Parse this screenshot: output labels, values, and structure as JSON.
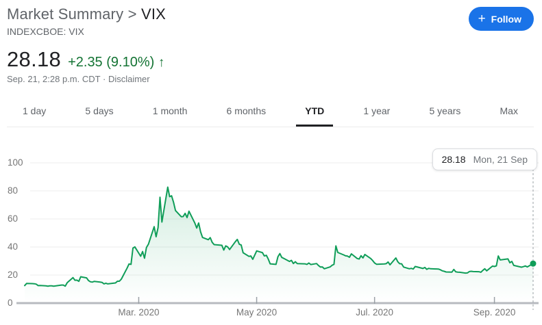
{
  "header": {
    "breadcrumb": "Market Summary > ",
    "symbol": "VIX",
    "subtitle": "INDEXCBOE: VIX",
    "follow_plus": "+",
    "follow_label": "Follow",
    "accent_color": "#1a73e8"
  },
  "quote": {
    "price": "28.18",
    "change": "+2.35 (9.10%)",
    "arrow": "↑",
    "change_color": "#137333",
    "timestamp": "Sep. 21, 2:28 p.m. CDT",
    "separator": "·",
    "disclaimer": "Disclaimer"
  },
  "tabs": [
    {
      "label": "1 day",
      "active": false
    },
    {
      "label": "5 days",
      "active": false
    },
    {
      "label": "1 month",
      "active": false
    },
    {
      "label": "6 months",
      "active": false
    },
    {
      "label": "YTD",
      "active": true
    },
    {
      "label": "1 year",
      "active": false
    },
    {
      "label": "5 years",
      "active": false
    },
    {
      "label": "Max",
      "active": false
    }
  ],
  "tooltip": {
    "value": "28.18",
    "date": "Mon, 21 Sep"
  },
  "chart_data": {
    "type": "line",
    "title": "INDEXCBOE: VIX — YTD",
    "line_color": "#0f9d58",
    "fill_color_rgb": "15,157,88",
    "ylim": [
      0,
      100
    ],
    "yticks": [
      0,
      20,
      40,
      60,
      80,
      100
    ],
    "x_unit": "day_of_year_2020",
    "xticks": [
      {
        "day": 61,
        "label": "Mar. 2020"
      },
      {
        "day": 122,
        "label": "May 2020"
      },
      {
        "day": 183,
        "label": "Jul. 2020"
      },
      {
        "day": 245,
        "label": "Sep. 2020"
      }
    ],
    "grid": true,
    "last_point": {
      "day": 265,
      "value": 28.18,
      "label": "Mon, 21 Sep"
    },
    "points": [
      [
        2,
        12.5
      ],
      [
        3,
        14.0
      ],
      [
        6,
        13.9
      ],
      [
        7,
        13.8
      ],
      [
        8,
        13.5
      ],
      [
        9,
        12.5
      ],
      [
        10,
        12.6
      ],
      [
        13,
        12.3
      ],
      [
        14,
        12.1
      ],
      [
        15,
        12.3
      ],
      [
        16,
        12.3
      ],
      [
        17,
        12.1
      ],
      [
        21,
        12.9
      ],
      [
        22,
        12.9
      ],
      [
        23,
        12.1
      ],
      [
        24,
        14.6
      ],
      [
        27,
        18.2
      ],
      [
        28,
        16.3
      ],
      [
        29,
        16.4
      ],
      [
        30,
        15.5
      ],
      [
        31,
        18.8
      ],
      [
        34,
        18.0
      ],
      [
        35,
        16.1
      ],
      [
        36,
        15.2
      ],
      [
        37,
        15.0
      ],
      [
        38,
        15.5
      ],
      [
        41,
        15.0
      ],
      [
        42,
        14.8
      ],
      [
        43,
        13.7
      ],
      [
        44,
        14.2
      ],
      [
        45,
        13.7
      ],
      [
        49,
        14.4
      ],
      [
        50,
        15.6
      ],
      [
        51,
        15.6
      ],
      [
        52,
        17.1
      ],
      [
        55,
        25.0
      ],
      [
        56,
        27.9
      ],
      [
        57,
        27.6
      ],
      [
        58,
        39.2
      ],
      [
        59,
        40.1
      ],
      [
        62,
        33.4
      ],
      [
        63,
        36.8
      ],
      [
        64,
        32.0
      ],
      [
        65,
        39.6
      ],
      [
        66,
        42.0
      ],
      [
        69,
        54.5
      ],
      [
        70,
        47.3
      ],
      [
        71,
        53.9
      ],
      [
        72,
        75.5
      ],
      [
        73,
        57.8
      ],
      [
        76,
        82.7
      ],
      [
        77,
        75.9
      ],
      [
        78,
        76.5
      ],
      [
        79,
        72.0
      ],
      [
        80,
        66.0
      ],
      [
        83,
        61.6
      ],
      [
        84,
        61.7
      ],
      [
        85,
        64.0
      ],
      [
        86,
        61.0
      ],
      [
        87,
        65.5
      ],
      [
        90,
        57.1
      ],
      [
        91,
        53.5
      ],
      [
        92,
        57.1
      ],
      [
        93,
        50.9
      ],
      [
        94,
        46.8
      ],
      [
        97,
        45.2
      ],
      [
        98,
        46.7
      ],
      [
        99,
        43.3
      ],
      [
        100,
        41.7
      ],
      [
        104,
        41.2
      ],
      [
        105,
        37.8
      ],
      [
        106,
        40.8
      ],
      [
        107,
        40.1
      ],
      [
        108,
        38.2
      ],
      [
        111,
        43.8
      ],
      [
        112,
        45.4
      ],
      [
        113,
        42.0
      ],
      [
        114,
        41.4
      ],
      [
        115,
        35.9
      ],
      [
        118,
        33.3
      ],
      [
        119,
        33.6
      ],
      [
        120,
        31.2
      ],
      [
        121,
        34.2
      ],
      [
        122,
        37.2
      ],
      [
        125,
        36.0
      ],
      [
        126,
        33.6
      ],
      [
        127,
        34.1
      ],
      [
        128,
        31.4
      ],
      [
        129,
        28.0
      ],
      [
        132,
        27.6
      ],
      [
        133,
        33.0
      ],
      [
        134,
        35.3
      ],
      [
        135,
        32.6
      ],
      [
        136,
        31.9
      ],
      [
        139,
        29.7
      ],
      [
        140,
        30.5
      ],
      [
        141,
        28.2
      ],
      [
        142,
        29.5
      ],
      [
        143,
        28.2
      ],
      [
        147,
        28.0
      ],
      [
        148,
        27.6
      ],
      [
        149,
        28.6
      ],
      [
        150,
        27.5
      ],
      [
        153,
        28.2
      ],
      [
        154,
        26.8
      ],
      [
        155,
        25.7
      ],
      [
        156,
        25.8
      ],
      [
        157,
        24.5
      ],
      [
        160,
        25.8
      ],
      [
        161,
        27.0
      ],
      [
        162,
        27.6
      ],
      [
        163,
        40.8
      ],
      [
        164,
        36.1
      ],
      [
        167,
        34.4
      ],
      [
        168,
        33.7
      ],
      [
        169,
        33.5
      ],
      [
        170,
        32.7
      ],
      [
        171,
        35.1
      ],
      [
        174,
        31.8
      ],
      [
        175,
        31.4
      ],
      [
        176,
        33.8
      ],
      [
        177,
        32.2
      ],
      [
        178,
        34.7
      ],
      [
        181,
        31.8
      ],
      [
        182,
        30.4
      ],
      [
        183,
        28.6
      ],
      [
        184,
        27.7
      ],
      [
        188,
        27.9
      ],
      [
        189,
        28.1
      ],
      [
        190,
        29.3
      ],
      [
        191,
        27.3
      ],
      [
        194,
        32.2
      ],
      [
        195,
        29.5
      ],
      [
        196,
        28.1
      ],
      [
        197,
        28.0
      ],
      [
        198,
        25.7
      ],
      [
        201,
        24.5
      ],
      [
        202,
        24.8
      ],
      [
        203,
        24.3
      ],
      [
        204,
        26.1
      ],
      [
        205,
        25.8
      ],
      [
        208,
        24.7
      ],
      [
        209,
        25.4
      ],
      [
        210,
        24.1
      ],
      [
        211,
        24.8
      ],
      [
        212,
        24.5
      ],
      [
        216,
        24.3
      ],
      [
        217,
        23.8
      ],
      [
        218,
        23.0
      ],
      [
        219,
        22.7
      ],
      [
        220,
        22.2
      ],
      [
        223,
        22.1
      ],
      [
        224,
        24.0
      ],
      [
        225,
        22.3
      ],
      [
        226,
        22.1
      ],
      [
        227,
        22.0
      ],
      [
        230,
        21.4
      ],
      [
        231,
        21.5
      ],
      [
        232,
        22.5
      ],
      [
        233,
        22.7
      ],
      [
        234,
        22.5
      ],
      [
        237,
        22.4
      ],
      [
        238,
        22.0
      ],
      [
        239,
        23.3
      ],
      [
        240,
        24.5
      ],
      [
        241,
        23.0
      ],
      [
        244,
        26.4
      ],
      [
        245,
        26.1
      ],
      [
        246,
        26.6
      ],
      [
        247,
        33.6
      ],
      [
        248,
        30.8
      ],
      [
        252,
        31.5
      ],
      [
        253,
        28.8
      ],
      [
        254,
        29.7
      ],
      [
        255,
        26.9
      ],
      [
        258,
        25.9
      ],
      [
        259,
        25.6
      ],
      [
        260,
        26.0
      ],
      [
        261,
        26.5
      ],
      [
        262,
        25.8
      ],
      [
        265,
        28.18
      ]
    ]
  }
}
